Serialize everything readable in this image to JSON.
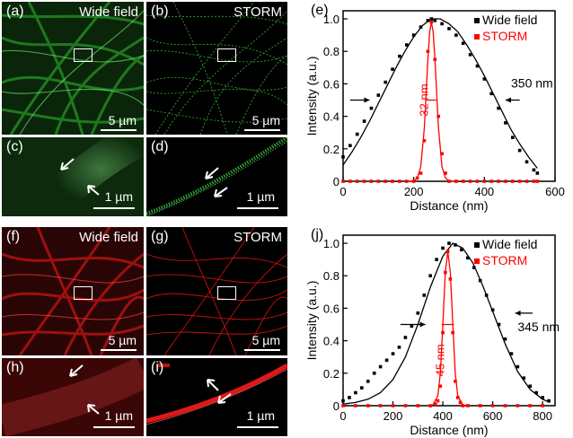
{
  "panels": {
    "a": {
      "label": "(a)",
      "title": "Wide field",
      "scale": "5 µm"
    },
    "b": {
      "label": "(b)",
      "title": "STORM",
      "scale": "5 µm"
    },
    "c": {
      "label": "(c)",
      "scale": "1 µm"
    },
    "d": {
      "label": "(d)",
      "scale": "1 µm"
    },
    "f": {
      "label": "(f)",
      "title": "Wide field",
      "scale": "5 µm"
    },
    "g": {
      "label": "(g)",
      "title": "STORM",
      "scale": "5 µm"
    },
    "h": {
      "label": "(h)",
      "scale": "1 µm"
    },
    "i": {
      "label": "(i)",
      "scale": "1 µm"
    }
  },
  "colors": {
    "green": "#22aa22",
    "red": "#e01010",
    "wide": "#000000",
    "storm": "#ff0000"
  },
  "chart_data": [
    {
      "type": "line",
      "panel_label": "(e)",
      "xlabel": "Distance (nm)",
      "ylabel": "Intensity (a.u.)",
      "xlim": [
        0,
        600
      ],
      "ylim": [
        0,
        1.05
      ],
      "xticks": [
        0,
        200,
        400,
        600
      ],
      "yticks": [
        "0",
        "0.2",
        "0.4",
        "0.6",
        "0.8",
        "1.0"
      ],
      "legend": [
        "Wide field",
        "STORM"
      ],
      "legend_position": "top-right",
      "annotations": {
        "wide_fwhm": "350 nm",
        "storm_fwhm": "32 nm"
      },
      "series": [
        {
          "name": "Wide field",
          "style": "points",
          "x": [
            0,
            20,
            40,
            60,
            80,
            100,
            120,
            140,
            160,
            180,
            200,
            220,
            240,
            250,
            260,
            280,
            300,
            320,
            340,
            360,
            380,
            400,
            420,
            440,
            460,
            480,
            500,
            520,
            540,
            550
          ],
          "y": [
            0.15,
            0.22,
            0.29,
            0.37,
            0.45,
            0.53,
            0.61,
            0.69,
            0.77,
            0.84,
            0.9,
            0.95,
            0.99,
            1.0,
            0.99,
            0.97,
            0.94,
            0.9,
            0.85,
            0.78,
            0.71,
            0.63,
            0.54,
            0.45,
            0.36,
            0.27,
            0.19,
            0.12,
            0.07,
            0.05
          ]
        },
        {
          "name": "Wide field fit",
          "style": "line",
          "x": [
            0,
            25,
            50,
            75,
            100,
            125,
            150,
            175,
            200,
            225,
            250,
            275,
            300,
            325,
            350,
            375,
            400,
            425,
            450,
            475,
            500,
            525,
            550
          ],
          "y": [
            0.1,
            0.18,
            0.27,
            0.37,
            0.48,
            0.59,
            0.7,
            0.8,
            0.89,
            0.96,
            1.0,
            1.0,
            0.97,
            0.92,
            0.84,
            0.75,
            0.65,
            0.54,
            0.43,
            0.32,
            0.23,
            0.15,
            0.08
          ]
        },
        {
          "name": "STORM",
          "style": "points",
          "x": [
            0,
            20,
            40,
            60,
            80,
            100,
            120,
            140,
            160,
            180,
            200,
            210,
            220,
            230,
            240,
            250,
            260,
            270,
            280,
            290,
            300,
            320,
            340,
            360,
            380,
            400,
            420,
            440,
            460,
            480,
            500,
            520,
            540,
            550
          ],
          "y": [
            0,
            0,
            0,
            0,
            0,
            0,
            0,
            0,
            0,
            0,
            0,
            0.02,
            0.05,
            0.25,
            0.8,
            0.98,
            0.75,
            0.4,
            0.17,
            0.05,
            0,
            0,
            0,
            0,
            0,
            0,
            0,
            0,
            0,
            0,
            0,
            0,
            0,
            0
          ]
        },
        {
          "name": "STORM fit",
          "style": "line",
          "x": [
            180,
            200,
            210,
            220,
            230,
            240,
            245,
            250,
            255,
            260,
            270,
            280,
            290,
            300,
            320
          ],
          "y": [
            0,
            0.002,
            0.02,
            0.09,
            0.33,
            0.75,
            0.92,
            0.98,
            0.92,
            0.75,
            0.33,
            0.09,
            0.02,
            0.002,
            0
          ]
        }
      ]
    },
    {
      "type": "line",
      "panel_label": "(j)",
      "xlabel": "Distance (nm)",
      "ylabel": "Intensity (a.u.)",
      "xlim": [
        0,
        850
      ],
      "ylim": [
        0,
        1.05
      ],
      "xticks": [
        0,
        200,
        400,
        600,
        800
      ],
      "yticks": [
        "0",
        "0.2",
        "0.4",
        "0.6",
        "0.8",
        "1.0"
      ],
      "legend": [
        "Wide field",
        "STORM"
      ],
      "legend_position": "top-right",
      "annotations": {
        "wide_fwhm": "345 nm",
        "storm_fwhm": "45 nm"
      },
      "series": [
        {
          "name": "Wide field",
          "style": "points",
          "x": [
            0,
            25,
            50,
            75,
            100,
            125,
            150,
            175,
            200,
            225,
            250,
            275,
            300,
            325,
            350,
            375,
            400,
            425,
            450,
            475,
            500,
            525,
            550,
            575,
            600,
            625,
            650,
            675,
            700,
            725,
            750,
            775,
            800,
            825
          ],
          "y": [
            0.03,
            0.05,
            0.08,
            0.11,
            0.15,
            0.2,
            0.24,
            0.28,
            0.32,
            0.36,
            0.42,
            0.49,
            0.57,
            0.68,
            0.8,
            0.9,
            0.97,
            1.0,
            0.99,
            0.96,
            0.91,
            0.85,
            0.77,
            0.68,
            0.59,
            0.5,
            0.41,
            0.32,
            0.24,
            0.17,
            0.12,
            0.08,
            0.05,
            0.03
          ]
        },
        {
          "name": "Wide field fit",
          "style": "line",
          "x": [
            0,
            50,
            100,
            150,
            200,
            250,
            300,
            350,
            400,
            440,
            480,
            520,
            560,
            600,
            650,
            700,
            750,
            800,
            830
          ],
          "y": [
            0.01,
            0.02,
            0.04,
            0.08,
            0.16,
            0.3,
            0.5,
            0.73,
            0.92,
            1.0,
            0.97,
            0.88,
            0.74,
            0.58,
            0.38,
            0.21,
            0.1,
            0.04,
            0.02
          ]
        },
        {
          "name": "STORM",
          "style": "points",
          "x": [
            0,
            50,
            100,
            150,
            200,
            250,
            300,
            350,
            370,
            380,
            390,
            400,
            410,
            420,
            430,
            440,
            450,
            460,
            470,
            480,
            500,
            550,
            600,
            650,
            700,
            750,
            800
          ],
          "y": [
            0,
            0,
            0,
            0,
            0,
            0,
            0,
            0,
            0.01,
            0.03,
            0.12,
            0.45,
            0.82,
            0.95,
            0.78,
            0.45,
            0.15,
            0.05,
            0.02,
            0,
            0,
            0,
            0,
            0,
            0,
            0,
            0
          ]
        },
        {
          "name": "STORM fit",
          "style": "line",
          "x": [
            340,
            360,
            380,
            390,
            400,
            410,
            420,
            430,
            440,
            450,
            460,
            480,
            500
          ],
          "y": [
            0,
            0.005,
            0.06,
            0.2,
            0.5,
            0.82,
            0.95,
            0.82,
            0.5,
            0.2,
            0.06,
            0.005,
            0
          ]
        }
      ]
    }
  ]
}
